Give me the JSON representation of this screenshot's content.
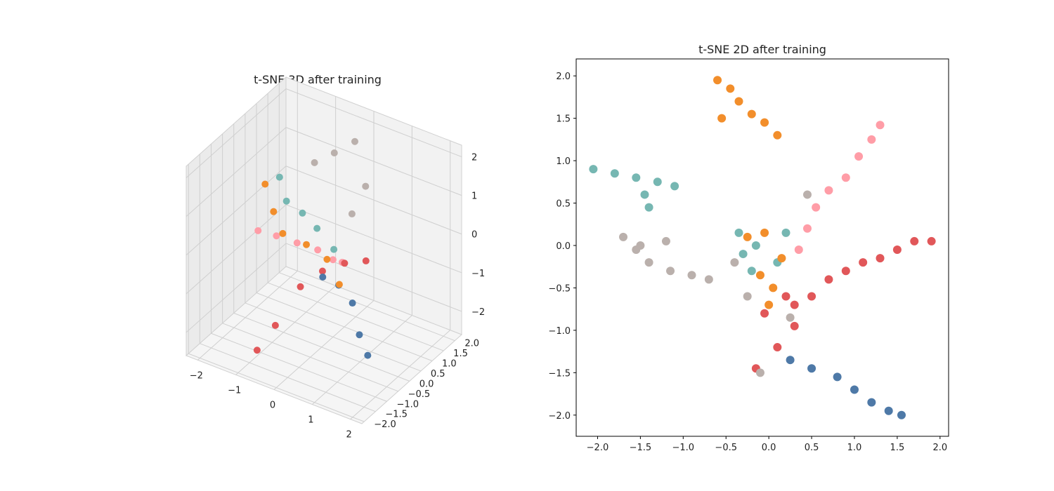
{
  "colors": {
    "blue": "#4e79a7",
    "orange": "#f28e2b",
    "red": "#e15759",
    "teal": "#76b7b2",
    "pink": "#ff9da7",
    "taupe": "#bab0ac"
  },
  "chart_data": [
    {
      "type": "scatter",
      "title": "t-SNE 3D after training",
      "projection": "3d",
      "grid": true,
      "x_ticks": [
        -2,
        -1,
        0,
        1,
        2
      ],
      "y_ticks": [
        -2.0,
        -1.5,
        -1.0,
        -0.5,
        0.0,
        0.5,
        1.0,
        1.5,
        2.0
      ],
      "z_ticks": [
        -2,
        -1,
        0,
        1,
        2
      ],
      "x_tick_labels": [
        "−2",
        "−1",
        "0",
        "1",
        "2"
      ],
      "y_tick_labels": [
        "−2.0",
        "−1.5",
        "−1.0",
        "−0.5",
        "0.0",
        "0.5",
        "1.0",
        "1.5",
        "2.0"
      ],
      "z_tick_labels": [
        "−2",
        "−1",
        "0",
        "1",
        "2"
      ],
      "xlim": [
        -2.3,
        2.3
      ],
      "ylim": [
        -2.1,
        2.3
      ],
      "zlim": [
        -2.6,
        2.3
      ],
      "series": [
        {
          "color": "pink",
          "points": [
            [
              -2.2,
              0.9,
              -0.9
            ],
            [
              -1.6,
              0.7,
              -0.7
            ],
            [
              -1.0,
              0.6,
              -0.6
            ],
            [
              -0.4,
              0.5,
              -0.5
            ],
            [
              0.0,
              0.5,
              -0.6
            ],
            [
              0.3,
              0.4,
              -0.5
            ]
          ]
        },
        {
          "color": "red",
          "points": [
            [
              -0.8,
              -1.5,
              -2.2
            ],
            [
              -0.5,
              -1.2,
              -1.6
            ],
            [
              -0.2,
              -0.6,
              -0.8
            ],
            [
              0.2,
              -0.3,
              -0.4
            ],
            [
              0.6,
              0.0,
              -0.2
            ],
            [
              1.1,
              0.1,
              0.0
            ]
          ]
        },
        {
          "color": "blue",
          "points": [
            [
              0.8,
              -1.3,
              0.2
            ],
            [
              1.1,
              -1.1,
              0.0
            ],
            [
              1.4,
              -1.0,
              -0.4
            ],
            [
              1.7,
              -1.2,
              -1.0
            ],
            [
              1.8,
              -1.0,
              -1.6
            ]
          ]
        },
        {
          "color": "taupe",
          "points": [
            [
              -0.9,
              1.2,
              1.2
            ],
            [
              -0.5,
              1.4,
              1.5
            ],
            [
              -0.2,
              1.8,
              1.7
            ],
            [
              0.2,
              1.6,
              0.8
            ],
            [
              0.2,
              1.0,
              0.4
            ]
          ]
        },
        {
          "color": "teal",
          "points": [
            [
              -1.4,
              0.5,
              1.0
            ],
            [
              -1.1,
              0.3,
              0.6
            ],
            [
              -0.8,
              0.5,
              0.3
            ],
            [
              -0.3,
              0.3,
              0.2
            ],
            [
              0.2,
              0.2,
              -0.1
            ]
          ]
        },
        {
          "color": "orange",
          "points": [
            [
              -1.6,
              0.2,
              0.9
            ],
            [
              -1.2,
              -0.1,
              0.5
            ],
            [
              -0.9,
              -0.2,
              0.1
            ],
            [
              -0.4,
              0.0,
              -0.1
            ],
            [
              0.2,
              -0.1,
              -0.2
            ],
            [
              0.7,
              -0.4,
              -0.5
            ]
          ]
        }
      ]
    },
    {
      "type": "scatter",
      "title": "t-SNE 2D after training",
      "grid": false,
      "xlim": [
        -2.25,
        2.1
      ],
      "ylim": [
        -2.25,
        2.2
      ],
      "x_ticks": [
        -2.0,
        -1.5,
        -1.0,
        -0.5,
        0.0,
        0.5,
        1.0,
        1.5,
        2.0
      ],
      "y_ticks": [
        -2.0,
        -1.5,
        -1.0,
        -0.5,
        0.0,
        0.5,
        1.0,
        1.5,
        2.0
      ],
      "x_tick_labels": [
        "−2.0",
        "−1.5",
        "−1.0",
        "−0.5",
        "0.0",
        "0.5",
        "1.0",
        "1.5",
        "2.0"
      ],
      "y_tick_labels": [
        "−2.0",
        "−1.5",
        "−1.0",
        "−0.5",
        "0.0",
        "0.5",
        "1.0",
        "1.5",
        "2.0"
      ],
      "series": [
        {
          "color": "orange",
          "points": [
            [
              -0.6,
              1.95
            ],
            [
              -0.45,
              1.85
            ],
            [
              -0.35,
              1.7
            ],
            [
              -0.2,
              1.55
            ],
            [
              -0.05,
              1.45
            ],
            [
              0.1,
              1.3
            ],
            [
              -0.55,
              1.5
            ]
          ]
        },
        {
          "color": "pink",
          "points": [
            [
              0.35,
              -0.05
            ],
            [
              0.45,
              0.2
            ],
            [
              0.55,
              0.45
            ],
            [
              0.7,
              0.65
            ],
            [
              0.9,
              0.8
            ],
            [
              1.05,
              1.05
            ],
            [
              1.2,
              1.25
            ],
            [
              1.3,
              1.42
            ]
          ]
        },
        {
          "color": "teal",
          "points": [
            [
              -2.05,
              0.9
            ],
            [
              -1.8,
              0.85
            ],
            [
              -1.55,
              0.8
            ],
            [
              -1.3,
              0.75
            ],
            [
              -1.1,
              0.7
            ],
            [
              -1.45,
              0.6
            ],
            [
              -1.4,
              0.45
            ]
          ]
        },
        {
          "color": "taupe",
          "points": [
            [
              -1.7,
              0.1
            ],
            [
              -1.55,
              -0.05
            ],
            [
              -1.4,
              -0.2
            ],
            [
              -1.15,
              -0.3
            ],
            [
              -0.9,
              -0.35
            ],
            [
              -0.7,
              -0.4
            ],
            [
              -1.5,
              0.0
            ],
            [
              -1.2,
              0.05
            ]
          ]
        },
        {
          "color": "red",
          "points": [
            [
              0.5,
              -0.6
            ],
            [
              0.7,
              -0.4
            ],
            [
              0.9,
              -0.3
            ],
            [
              1.1,
              -0.2
            ],
            [
              1.3,
              -0.15
            ],
            [
              1.5,
              -0.05
            ],
            [
              1.7,
              0.05
            ],
            [
              1.9,
              0.05
            ],
            [
              0.3,
              -0.7
            ]
          ]
        },
        {
          "color": "blue",
          "points": [
            [
              0.25,
              -1.35
            ],
            [
              0.5,
              -1.45
            ],
            [
              0.8,
              -1.55
            ],
            [
              1.0,
              -1.7
            ],
            [
              1.2,
              -1.85
            ],
            [
              1.4,
              -1.95
            ],
            [
              1.55,
              -2.0
            ]
          ]
        },
        {
          "color": "teal",
          "points": [
            [
              -0.3,
              -0.1
            ],
            [
              -0.2,
              -0.3
            ],
            [
              0.1,
              -0.2
            ],
            [
              0.2,
              0.15
            ],
            [
              -0.35,
              0.15
            ],
            [
              -0.15,
              0.0
            ]
          ]
        },
        {
          "color": "orange",
          "points": [
            [
              -0.25,
              0.1
            ],
            [
              -0.1,
              -0.35
            ],
            [
              0.05,
              -0.5
            ],
            [
              0.15,
              -0.15
            ],
            [
              -0.05,
              0.15
            ],
            [
              0.0,
              -0.7
            ]
          ]
        },
        {
          "color": "red",
          "points": [
            [
              -0.05,
              -0.8
            ],
            [
              0.2,
              -0.6
            ],
            [
              0.3,
              -0.95
            ],
            [
              0.1,
              -1.2
            ],
            [
              -0.15,
              -1.45
            ]
          ]
        },
        {
          "color": "taupe",
          "points": [
            [
              -0.4,
              -0.2
            ],
            [
              -0.25,
              -0.6
            ],
            [
              0.25,
              -0.85
            ],
            [
              0.45,
              0.6
            ],
            [
              -0.1,
              -1.5
            ]
          ]
        }
      ]
    }
  ]
}
